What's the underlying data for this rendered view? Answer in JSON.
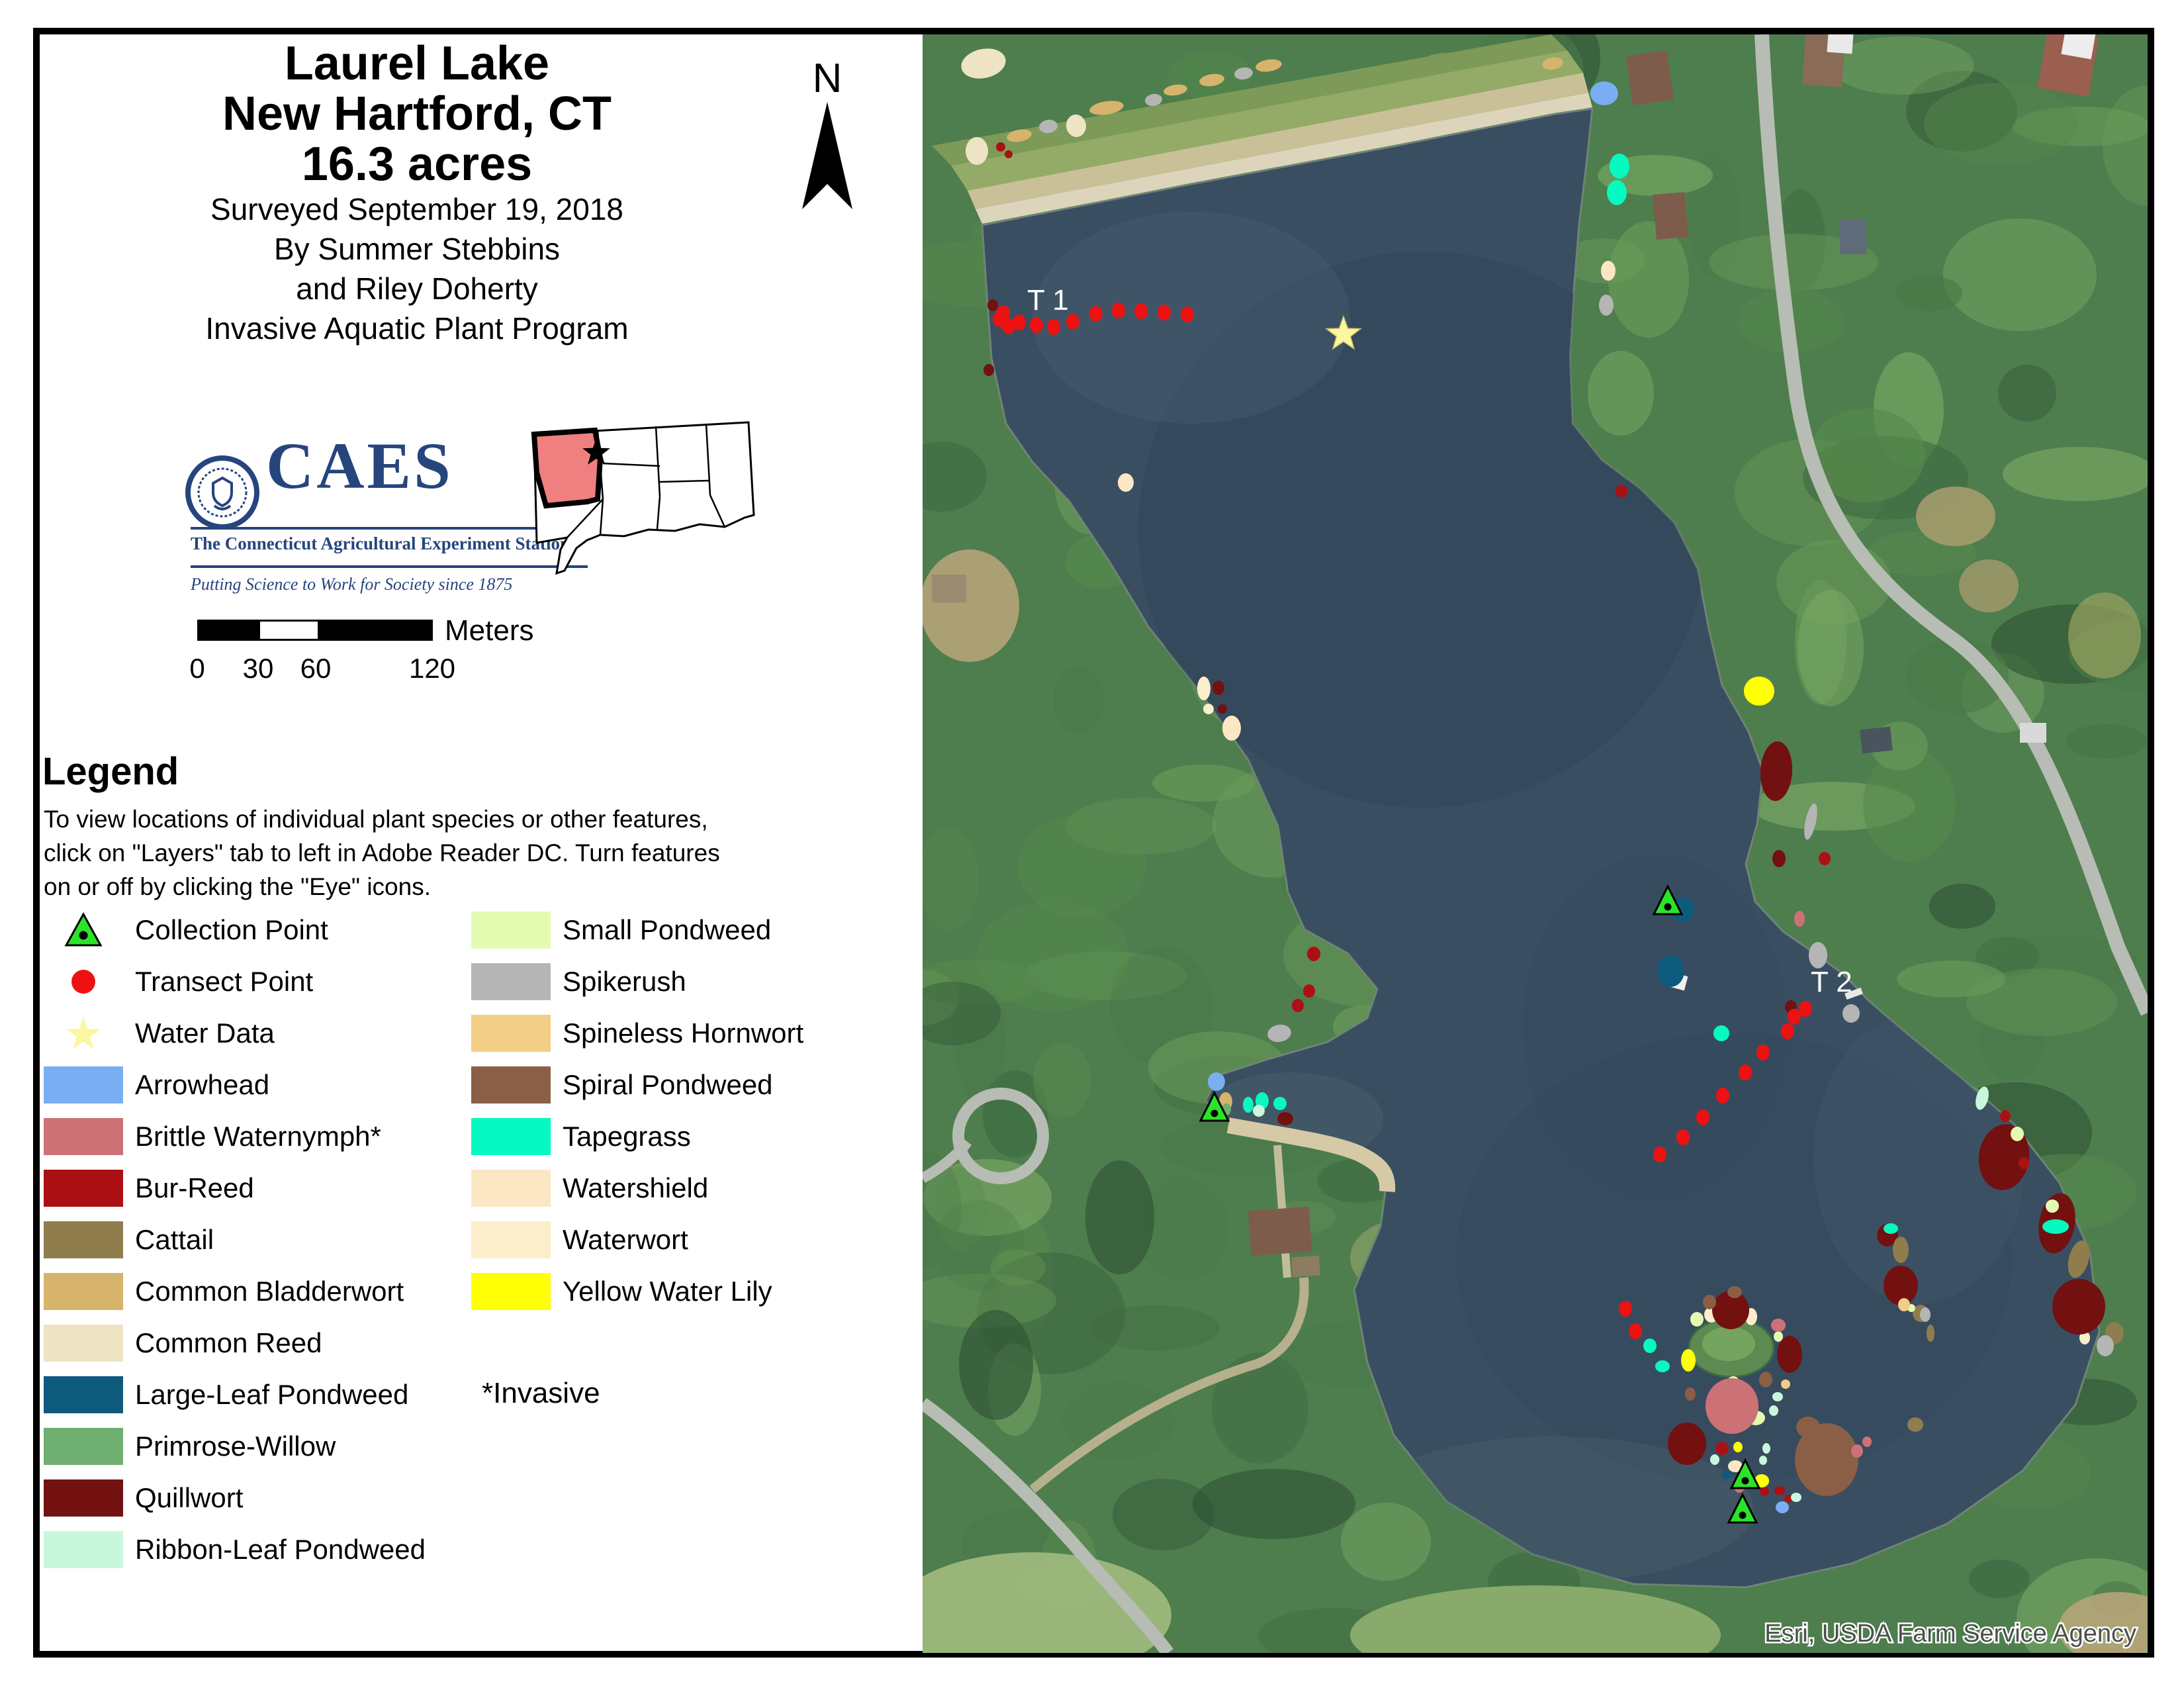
{
  "title_block": {
    "line1": "Laurel Lake",
    "line2": "New Hartford, CT",
    "line3": "16.3 acres",
    "line4": "Surveyed September 19, 2018",
    "line5": "By Summer Stebbins",
    "line6": "and Riley Doherty",
    "line7": "Invasive Aquatic Plant Program"
  },
  "north_label": "N",
  "caes": {
    "acronym": "CAES",
    "name": "The Connecticut Agricultural Experiment Station",
    "tagline": "Putting Science to Work for Society since 1875",
    "navy": "#26457d"
  },
  "ct_inset": {
    "highlight_color": "#f08080"
  },
  "scale_bar": {
    "ticks": [
      "0",
      "30",
      "60",
      "120"
    ],
    "unit": "Meters"
  },
  "legend": {
    "heading": "Legend",
    "note_lines": [
      "To view locations of individual plant species or other features,",
      "click on \"Layers\" tab to left in Adobe Reader DC. Turn features",
      "on or off by clicking the \"Eye\"  icons."
    ],
    "left_items": [
      {
        "id": "collection-point",
        "label": "Collection Point",
        "symbol": "triangle",
        "color": "#2be32b"
      },
      {
        "id": "transect-point",
        "label": "Transect Point",
        "symbol": "dot",
        "color": "#ee1111"
      },
      {
        "id": "water-data",
        "label": "Water Data",
        "symbol": "star",
        "color": "#fbf6a0"
      },
      {
        "id": "arrowhead",
        "label": "Arrowhead",
        "symbol": "rect",
        "color": "#79aff2"
      },
      {
        "id": "brittle-waternymph",
        "label": "Brittle Waternymph*",
        "symbol": "rect",
        "color": "#cc7277"
      },
      {
        "id": "bur-reed",
        "label": "Bur-Reed",
        "symbol": "rect",
        "color": "#ab1015"
      },
      {
        "id": "cattail",
        "label": "Cattail",
        "symbol": "rect",
        "color": "#8f7d4e"
      },
      {
        "id": "common-bladderwort",
        "label": "Common Bladderwort",
        "symbol": "rect",
        "color": "#d6b46c"
      },
      {
        "id": "common-reed",
        "label": "Common Reed",
        "symbol": "rect",
        "color": "#eee3c3"
      },
      {
        "id": "large-leaf-pondweed",
        "label": "Large-Leaf Pondweed",
        "symbol": "rect",
        "color": "#0e5a7d"
      },
      {
        "id": "primrose-willow",
        "label": "Primrose-Willow",
        "symbol": "rect",
        "color": "#6fae71"
      },
      {
        "id": "quillwort",
        "label": "Quillwort",
        "symbol": "rect",
        "color": "#731010"
      },
      {
        "id": "ribbon-leaf-pondweed",
        "label": "Ribbon-Leaf Pondweed",
        "symbol": "rect",
        "color": "#c9f7dd"
      }
    ],
    "right_items": [
      {
        "id": "small-pondweed",
        "label": "Small Pondweed",
        "symbol": "rect",
        "color": "#e3fbb1"
      },
      {
        "id": "spikerush",
        "label": "Spikerush",
        "symbol": "rect",
        "color": "#b5b5b5"
      },
      {
        "id": "spineless-hornwort",
        "label": "Spineless Hornwort",
        "symbol": "rect",
        "color": "#f2cd85"
      },
      {
        "id": "spiral-pondweed",
        "label": "Spiral Pondweed",
        "symbol": "rect",
        "color": "#8a5f45"
      },
      {
        "id": "tapegrass",
        "label": "Tapegrass",
        "symbol": "rect",
        "color": "#06f9c0"
      },
      {
        "id": "watershield",
        "label": "Watershield",
        "symbol": "rect",
        "color": "#fbe7c4"
      },
      {
        "id": "waterwort",
        "label": "Waterwort",
        "symbol": "rect",
        "color": "#fdeecb"
      },
      {
        "id": "yellow-water-lily",
        "label": "Yellow Water Lily",
        "symbol": "rect",
        "color": "#ffff05"
      }
    ],
    "invasive_note": "*Invasive"
  },
  "map": {
    "transect_labels": [
      "T 1",
      "T 2"
    ],
    "attribution": "Esri, USDA Farm Service Agency"
  }
}
